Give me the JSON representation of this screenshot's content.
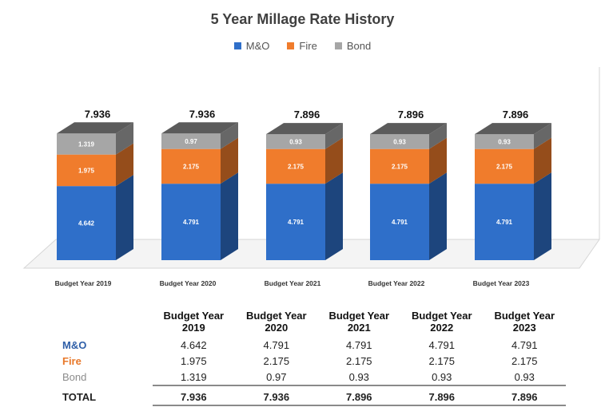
{
  "chart_data": {
    "type": "bar",
    "stacked": true,
    "title": "5 Year Millage Rate History",
    "categories": [
      "Budget Year 2019",
      "Budget Year 2020",
      "Budget Year 2021",
      "Budget Year 2022",
      "Budget Year 2023"
    ],
    "series": [
      {
        "name": "M&O",
        "color": "#2f6fc9",
        "labels": [
          "4.642",
          "4.791",
          "4.791",
          "4.791",
          "4.791"
        ],
        "values": [
          4.642,
          4.791,
          4.791,
          4.791,
          4.791
        ]
      },
      {
        "name": "Fire",
        "color": "#f07c2c",
        "labels": [
          "1.975",
          "2.175",
          "2.175",
          "2.175",
          "2.175"
        ],
        "values": [
          1.975,
          2.175,
          2.175,
          2.175,
          2.175
        ]
      },
      {
        "name": "Bond",
        "color": "#a6a6a6",
        "labels": [
          "1.319",
          "0.97",
          "0.93",
          "0.93",
          "0.93"
        ],
        "values": [
          1.319,
          0.97,
          0.93,
          0.93,
          0.93
        ]
      }
    ],
    "totals": [
      "7.936",
      "7.936",
      "7.896",
      "7.896",
      "7.896"
    ],
    "legend_position": "top-center"
  },
  "table": {
    "headers": [
      {
        "line1": "Budget Year",
        "line2": "2019"
      },
      {
        "line1": "Budget Year",
        "line2": "2020"
      },
      {
        "line1": "Budget Year",
        "line2": "2021"
      },
      {
        "line1": "Budget Year",
        "line2": "2022"
      },
      {
        "line1": "Budget Year",
        "line2": "2023"
      }
    ],
    "rows": [
      {
        "label": "M&O",
        "color": "#2f5fa8",
        "values": [
          "4.642",
          "4.791",
          "4.791",
          "4.791",
          "4.791"
        ]
      },
      {
        "label": "Fire",
        "color": "#e8782a",
        "values": [
          "1.975",
          "2.175",
          "2.175",
          "2.175",
          "2.175"
        ]
      },
      {
        "label": "Bond",
        "color": "#8c8c8c",
        "values": [
          "1.319",
          "0.97",
          "0.93",
          "0.93",
          "0.93"
        ]
      }
    ],
    "total": {
      "label": "TOTAL",
      "values": [
        "7.936",
        "7.936",
        "7.896",
        "7.896",
        "7.896"
      ]
    }
  }
}
